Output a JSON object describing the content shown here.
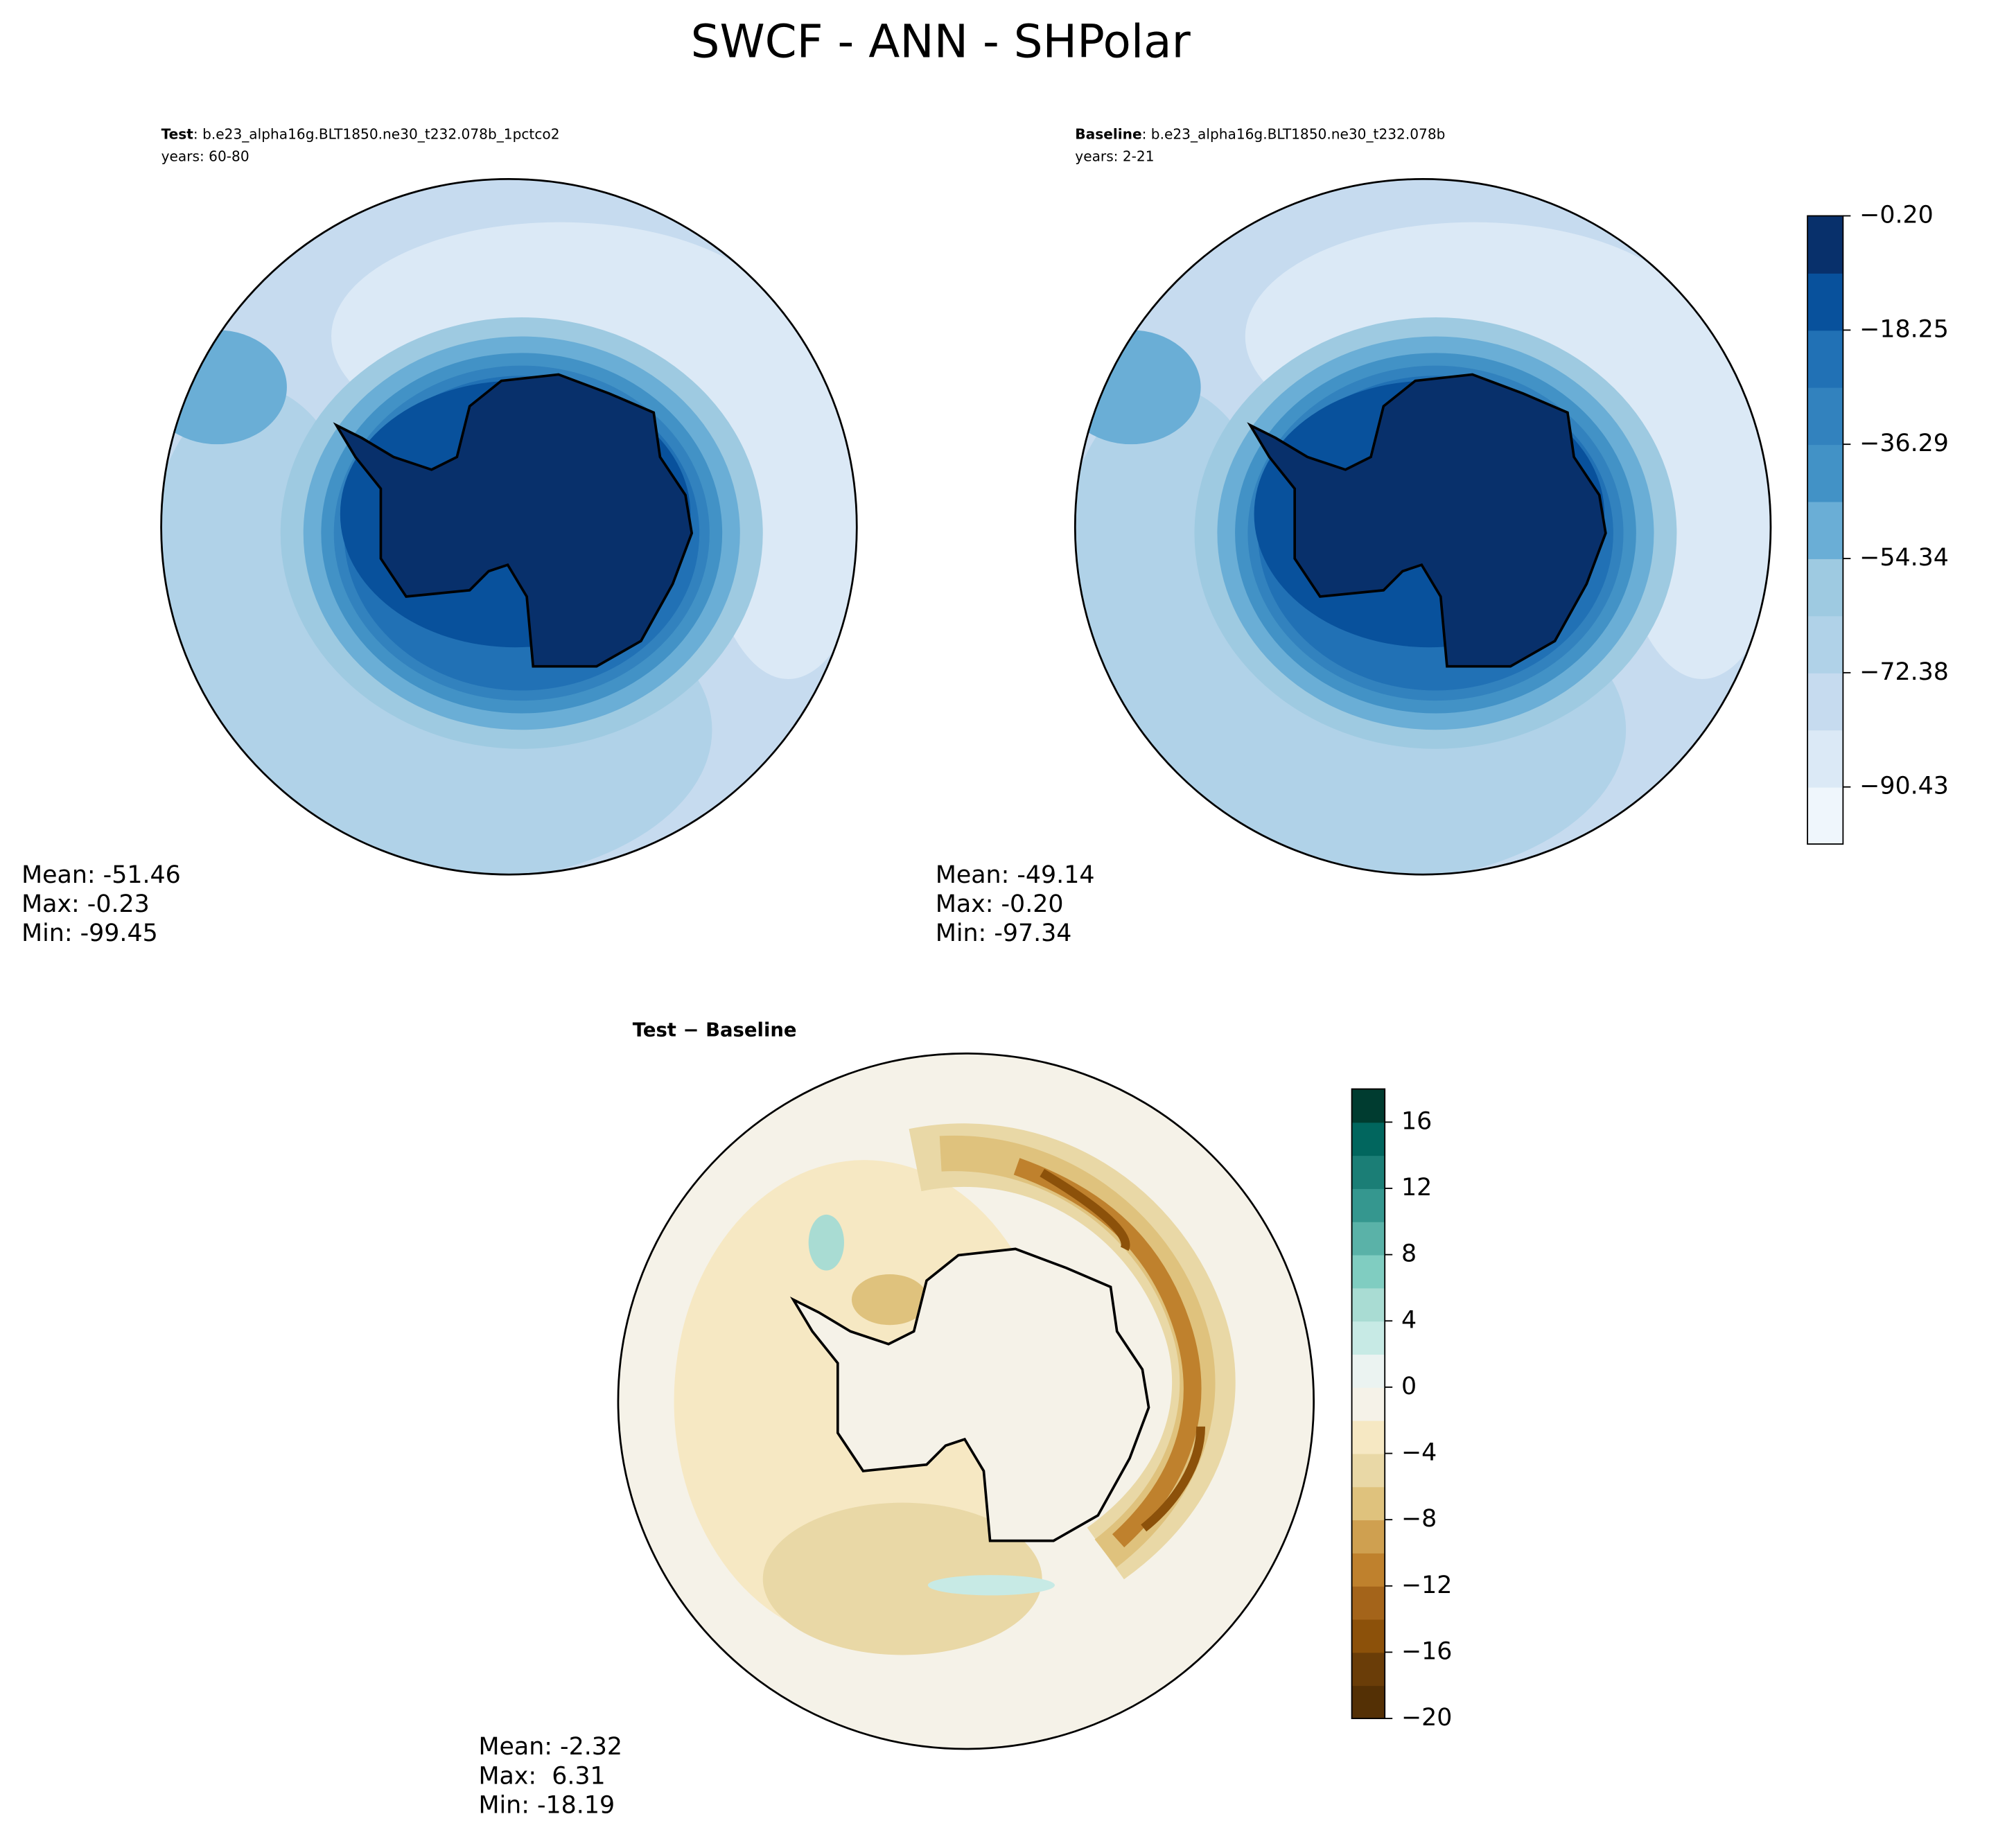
{
  "title": "SWCF - ANN - SHPolar",
  "panels": [
    {
      "case_label": "Test",
      "case_name": ": b.e23_alpha16g.BLT1850.ne30_t232.078b_1pctco2",
      "years": "years: 60-80",
      "stats": [
        "Mean: -51.46",
        "Max: -0.23",
        "Min: -99.45"
      ]
    },
    {
      "case_label": "Baseline",
      "case_name": ": b.e23_alpha16g.BLT1850.ne30_t232.078b",
      "years": "years: 2-21",
      "stats": [
        "Mean: -49.14",
        "Max: -0.20",
        "Min: -97.34"
      ]
    },
    {
      "title": "Test − Baseline",
      "stats": [
        "Mean: -2.32",
        "Max:  6.31",
        "Min: -18.19"
      ]
    }
  ],
  "colorbars": [
    {
      "lim": [
        -99.45,
        -0.2
      ],
      "ticks": [
        {
          "value": -0.2,
          "label": "−0.20"
        },
        {
          "value": -18.25,
          "label": "−18.25"
        },
        {
          "value": -36.29,
          "label": "−36.29"
        },
        {
          "value": -54.34,
          "label": "−54.34"
        },
        {
          "value": -72.38,
          "label": "−72.38"
        },
        {
          "value": -90.43,
          "label": "−90.43"
        }
      ],
      "colors": [
        "#eff6fc",
        "#dbe9f6",
        "#c6dbef",
        "#b0d2e8",
        "#9ecae1",
        "#6aaed6",
        "#4292c6",
        "#3282be",
        "#2171b5",
        "#08519c",
        "#08306b"
      ]
    },
    {
      "lim": [
        -20,
        18
      ],
      "ticks": [
        {
          "value": -20,
          "label": "−20"
        },
        {
          "value": -16,
          "label": "−16"
        },
        {
          "value": -12,
          "label": "−12"
        },
        {
          "value": -8,
          "label": "−8"
        },
        {
          "value": -4,
          "label": "−4"
        },
        0,
        4,
        8,
        12,
        16
      ],
      "colors": [
        "#543005",
        "#6a3d08",
        "#8c510a",
        "#a4641a",
        "#bf812d",
        "#cfa050",
        "#dfc27d",
        "#e9d8a6",
        "#f6e8c3",
        "#f5f2e8",
        "#ebf3f1",
        "#c7eae5",
        "#a9dcd3",
        "#80cdc1",
        "#5ab2a8",
        "#35978f",
        "#1b7e76",
        "#01665e",
        "#003c30"
      ]
    }
  ]
}
